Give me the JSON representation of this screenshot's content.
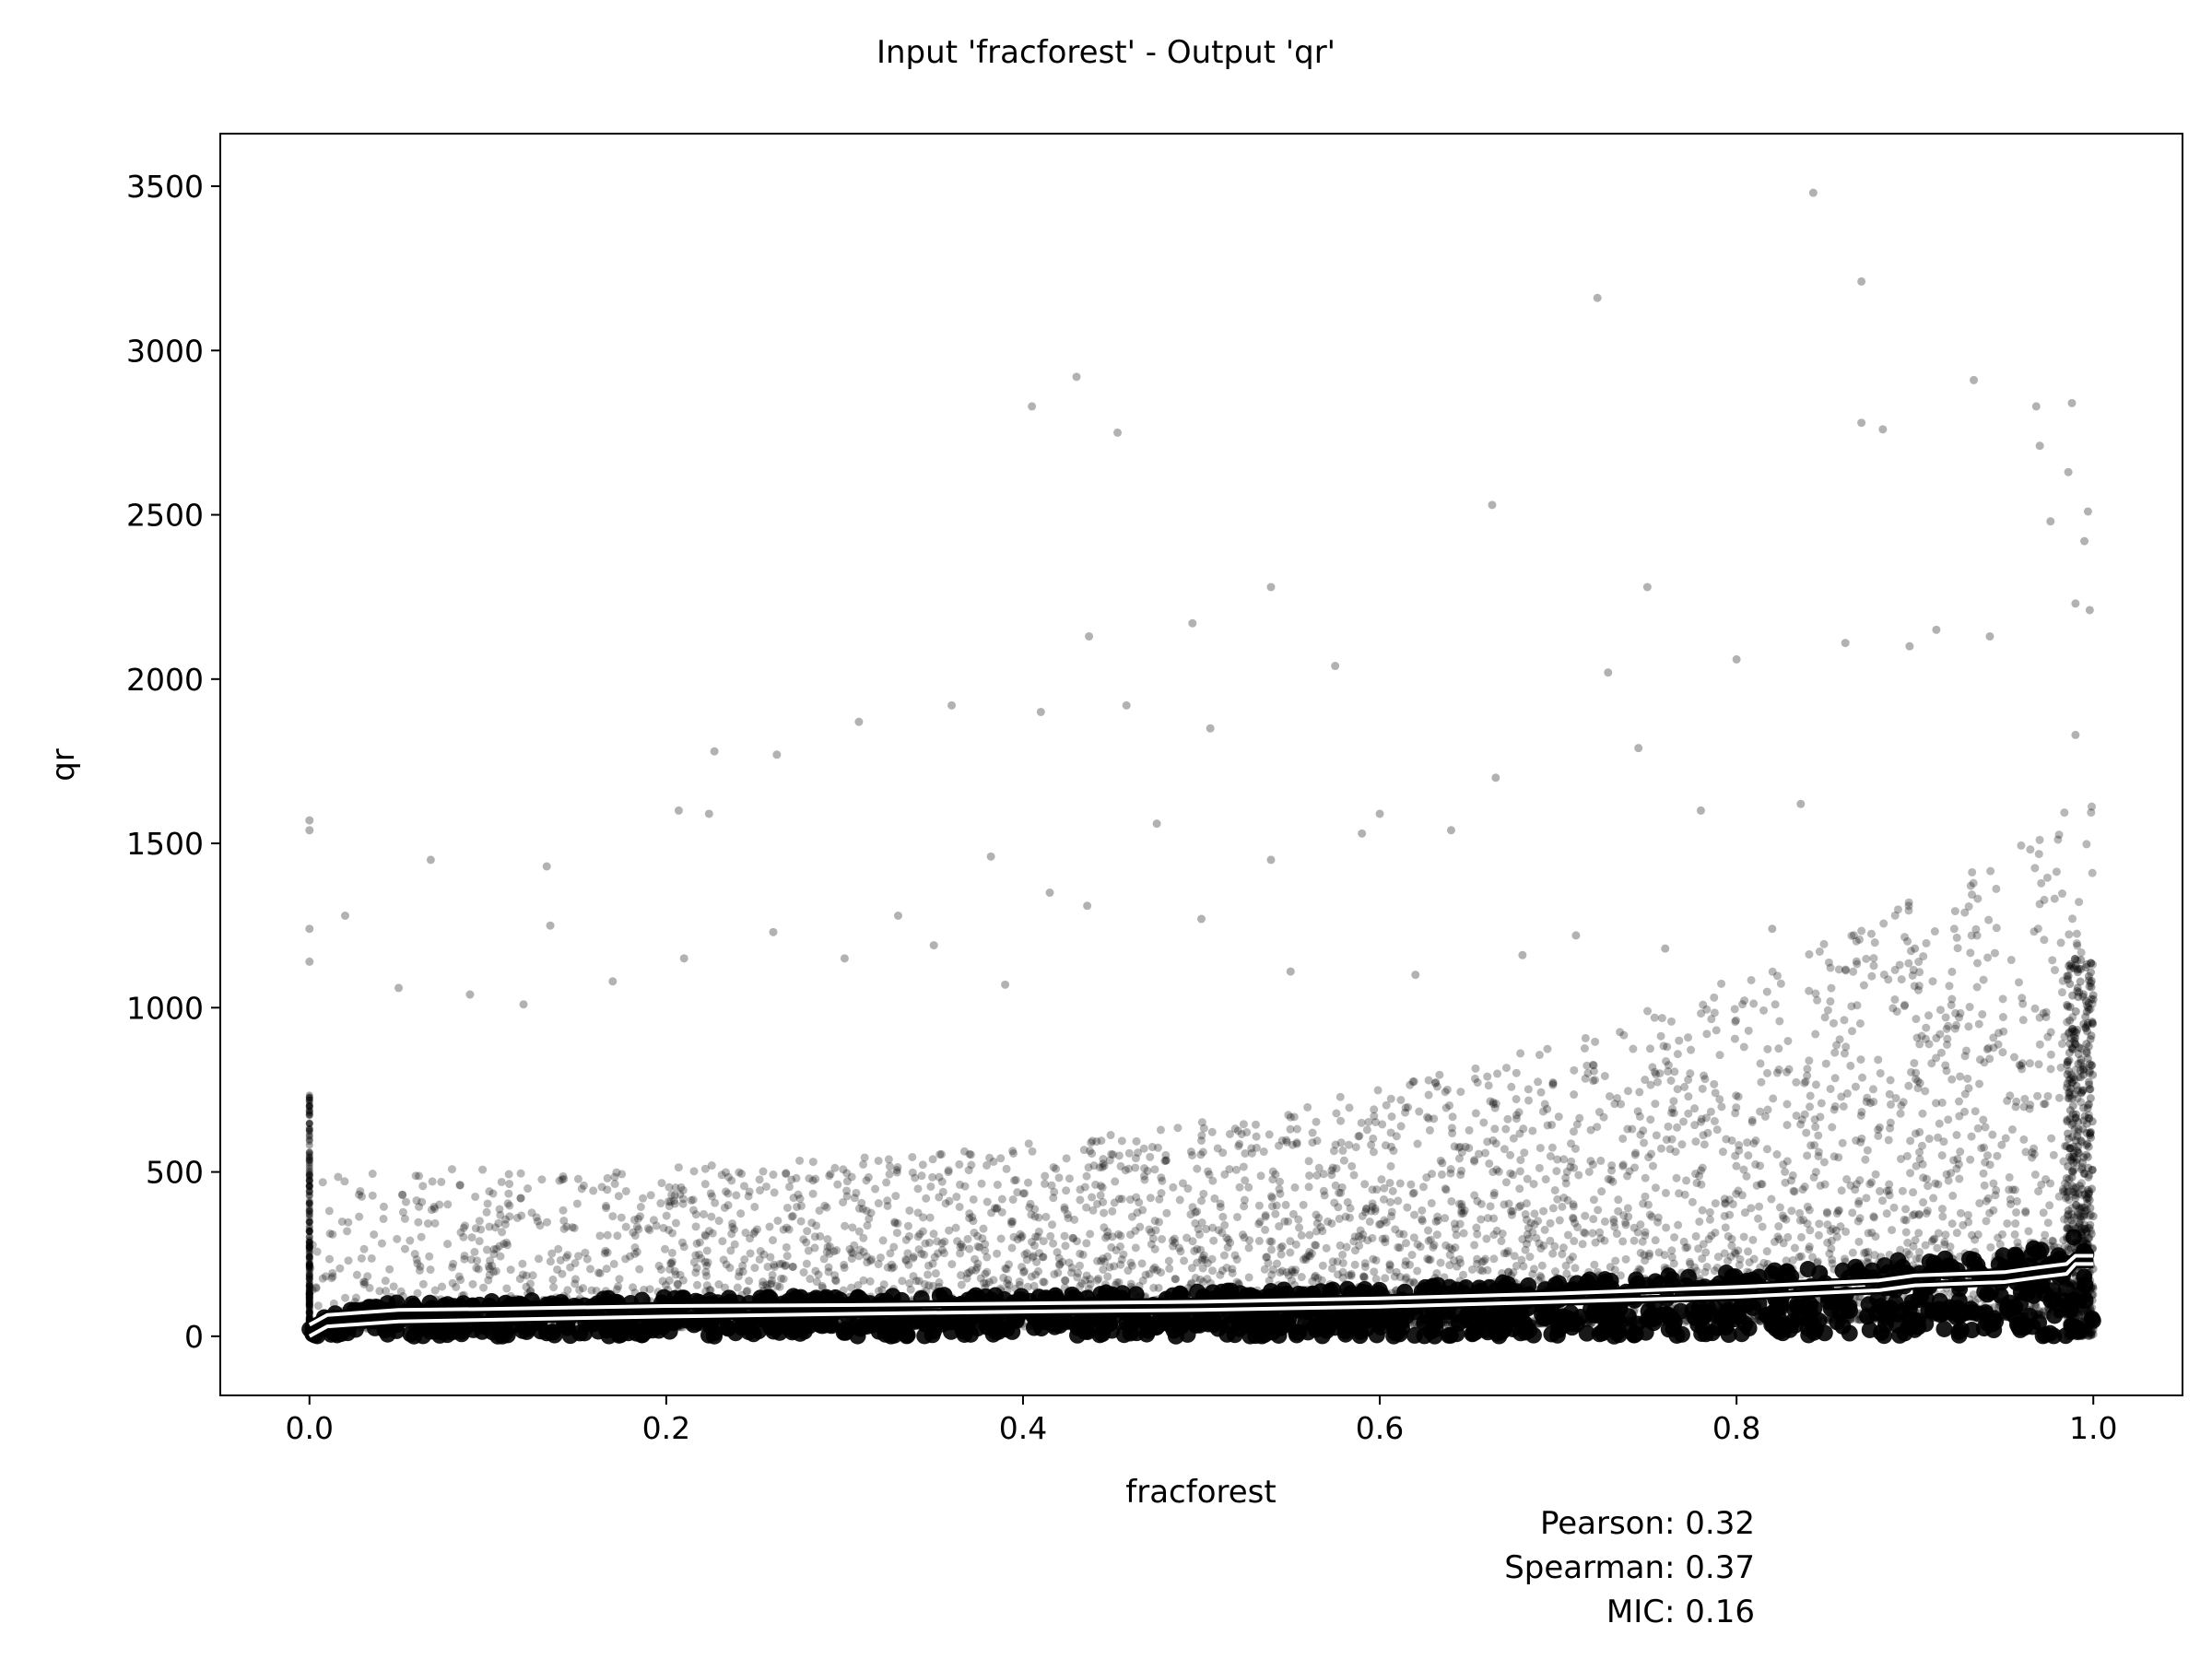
{
  "chart_data": {
    "type": "scatter",
    "title": "Input 'fracforest' - Output 'qr'",
    "xlabel": "fracforest",
    "ylabel": "qr",
    "xlim": [
      -0.05,
      1.05
    ],
    "ylim": [
      -180,
      3660
    ],
    "xticks": [
      0.0,
      0.2,
      0.4,
      0.6,
      0.8,
      1.0
    ],
    "xtick_labels": [
      "0.0",
      "0.2",
      "0.4",
      "0.6",
      "0.8",
      "1.0"
    ],
    "yticks": [
      0,
      500,
      1000,
      1500,
      2000,
      2500,
      3000,
      3500
    ],
    "ytick_labels": [
      "0",
      "500",
      "1000",
      "1500",
      "2000",
      "2500",
      "3000",
      "3500"
    ],
    "grid": false,
    "point_color": "#000000",
    "trend_line_color": "#ffffff",
    "outliers": [
      {
        "x": 0.843,
        "y": 3480
      },
      {
        "x": 0.87,
        "y": 3210
      },
      {
        "x": 0.722,
        "y": 3160
      },
      {
        "x": 0.43,
        "y": 2920
      },
      {
        "x": 0.933,
        "y": 2910
      },
      {
        "x": 0.405,
        "y": 2830
      },
      {
        "x": 0.988,
        "y": 2840
      },
      {
        "x": 0.968,
        "y": 2830
      },
      {
        "x": 0.87,
        "y": 2780
      },
      {
        "x": 0.882,
        "y": 2760
      },
      {
        "x": 0.453,
        "y": 2750
      },
      {
        "x": 0.97,
        "y": 2710
      },
      {
        "x": 0.986,
        "y": 2630
      },
      {
        "x": 0.663,
        "y": 2530
      },
      {
        "x": 0.997,
        "y": 2510
      },
      {
        "x": 0.976,
        "y": 2480
      },
      {
        "x": 0.995,
        "y": 2420
      },
      {
        "x": 0.75,
        "y": 2280
      },
      {
        "x": 0.539,
        "y": 2280
      },
      {
        "x": 0.998,
        "y": 2210
      },
      {
        "x": 0.99,
        "y": 2230
      },
      {
        "x": 0.495,
        "y": 2170
      },
      {
        "x": 0.437,
        "y": 2130
      },
      {
        "x": 0.912,
        "y": 2150
      },
      {
        "x": 0.861,
        "y": 2110
      },
      {
        "x": 0.942,
        "y": 2130
      },
      {
        "x": 0.575,
        "y": 2040
      },
      {
        "x": 0.897,
        "y": 2100
      },
      {
        "x": 0.728,
        "y": 2020
      },
      {
        "x": 0.8,
        "y": 2060
      },
      {
        "x": 0.36,
        "y": 1920
      },
      {
        "x": 0.41,
        "y": 1900
      },
      {
        "x": 0.458,
        "y": 1920
      },
      {
        "x": 0.308,
        "y": 1870
      },
      {
        "x": 0.505,
        "y": 1850
      },
      {
        "x": 0.227,
        "y": 1780
      },
      {
        "x": 0.262,
        "y": 1770
      },
      {
        "x": 0.745,
        "y": 1790
      },
      {
        "x": 0.99,
        "y": 1830
      },
      {
        "x": 0.207,
        "y": 1600
      },
      {
        "x": 0.224,
        "y": 1590
      },
      {
        "x": 0.0,
        "y": 1570
      },
      {
        "x": 0.0,
        "y": 1540
      },
      {
        "x": 0.068,
        "y": 1450
      },
      {
        "x": 0.133,
        "y": 1430
      },
      {
        "x": 0.382,
        "y": 1460
      },
      {
        "x": 0.539,
        "y": 1450
      },
      {
        "x": 0.6,
        "y": 1590
      },
      {
        "x": 0.59,
        "y": 1530
      },
      {
        "x": 0.665,
        "y": 1700
      },
      {
        "x": 0.78,
        "y": 1600
      },
      {
        "x": 0.836,
        "y": 1620
      },
      {
        "x": 0.02,
        "y": 1280
      },
      {
        "x": 0.135,
        "y": 1250
      },
      {
        "x": 0.33,
        "y": 1280
      },
      {
        "x": 0.415,
        "y": 1350
      },
      {
        "x": 0.436,
        "y": 1310
      },
      {
        "x": 0.5,
        "y": 1270
      },
      {
        "x": 0.475,
        "y": 1560
      },
      {
        "x": 0.64,
        "y": 1540
      },
      {
        "x": 0.0,
        "y": 1240
      },
      {
        "x": 0.0,
        "y": 1140
      },
      {
        "x": 0.05,
        "y": 1060
      },
      {
        "x": 0.09,
        "y": 1040
      },
      {
        "x": 0.12,
        "y": 1010
      },
      {
        "x": 0.17,
        "y": 1080
      },
      {
        "x": 0.21,
        "y": 1150
      },
      {
        "x": 0.26,
        "y": 1230
      },
      {
        "x": 0.3,
        "y": 1150
      },
      {
        "x": 0.35,
        "y": 1190
      },
      {
        "x": 0.39,
        "y": 1070
      },
      {
        "x": 0.55,
        "y": 1110
      },
      {
        "x": 0.62,
        "y": 1100
      },
      {
        "x": 0.68,
        "y": 1160
      },
      {
        "x": 0.71,
        "y": 1220
      },
      {
        "x": 0.76,
        "y": 1180
      },
      {
        "x": 0.82,
        "y": 1240
      },
      {
        "x": 0.9,
        "y": 1180
      }
    ],
    "trend_lines": [
      {
        "x": [
          0.0,
          0.01,
          0.05,
          0.1,
          0.2,
          0.3,
          0.4,
          0.5,
          0.6,
          0.7,
          0.8,
          0.88,
          0.9,
          0.95,
          0.97,
          0.985,
          0.99,
          1.0
        ],
        "y": [
          35,
          65,
          80,
          83,
          92,
          95,
          100,
          105,
          115,
          130,
          150,
          170,
          185,
          195,
          210,
          220,
          245,
          245
        ]
      },
      {
        "x": [
          0.0,
          0.01,
          0.05,
          0.1,
          0.2,
          0.3,
          0.4,
          0.5,
          0.6,
          0.7,
          0.8,
          0.88,
          0.9,
          0.95,
          0.97,
          0.985,
          0.99,
          1.0
        ],
        "y": [
          0,
          30,
          45,
          50,
          60,
          68,
          75,
          80,
          90,
          105,
          120,
          140,
          155,
          165,
          180,
          190,
          220,
          220
        ]
      }
    ]
  },
  "stats": {
    "pearson": "Pearson: 0.32",
    "spearman": "Spearman: 0.37",
    "mic": "MIC: 0.16"
  }
}
